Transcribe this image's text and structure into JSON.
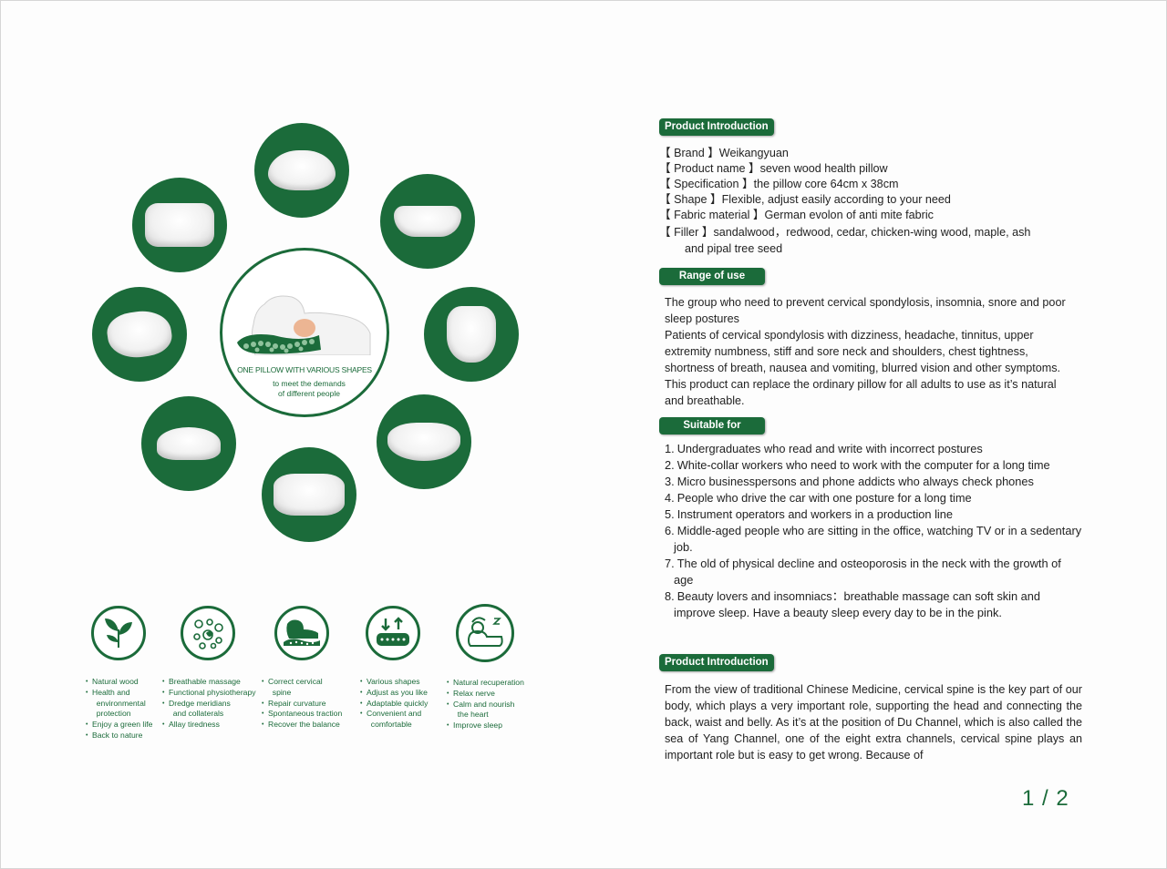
{
  "left": {
    "center_title": "ONE PILLOW WITH VARIOUS SHAPES",
    "center_subtitle": "to meet the demands\nof different people",
    "features": [
      {
        "icon": "leaves-icon",
        "items": [
          "Natural wood",
          "Health and",
          "  environmental",
          "  protection",
          "Enjoy a green life",
          "Back to nature"
        ]
      },
      {
        "icon": "massage-beads-icon",
        "items": [
          "Breathable massage",
          "Functional physiotherapy",
          "Dredge meridians",
          "  and collaterals",
          "Allay tiredness"
        ]
      },
      {
        "icon": "neck-support-icon",
        "items": [
          "Correct cervical",
          "  spine",
          "Repair curvature",
          "Spontaneous traction",
          "Recover the balance"
        ]
      },
      {
        "icon": "adjustable-arrows-icon",
        "items": [
          "Various shapes",
          "Adjust as you like",
          "Adaptable quickly",
          "Convenient and",
          "  comfortable"
        ]
      },
      {
        "icon": "sleeping-person-icon",
        "items": [
          "Natural recuperation",
          "Relax nerve",
          "Calm and nourish",
          "  the heart",
          "Improve sleep"
        ]
      }
    ]
  },
  "right": {
    "sections": {
      "product_intro_label": "Product Introduction",
      "range_label": "Range of use",
      "suitable_label": "Suitable for",
      "product_intro2_label": "Product Introduction"
    },
    "specs": {
      "brand": "【 Brand 】Weikangyuan",
      "name": "【 Product name 】seven wood health pillow",
      "spec": "【 Specification 】the pillow core 64cm x 38cm",
      "shape": "【 Shape 】Flexible, adjust easily according to your need",
      "fabric": "【 Fabric material 】German evolon of anti mite fabric",
      "filler": "【 Filler 】sandalwood，redwood, cedar, chicken-wing wood, maple, ash",
      "filler_cont": "and pipal tree seed"
    },
    "range_text": "The group who need to prevent cervical spondylosis,  insomnia,  snore and poor sleep postures\nPatients of cervical spondylosis with dizziness,  headache,  tinnitus,  upper extremity numbness,  stiff and sore neck and shoulders,  chest tightness, shortness of breath,  nausea and vomiting,  blurred vision and other symptoms. This product can replace the ordinary pillow for all adults to use as it’s natural and breathable.",
    "suitable": [
      {
        "n": "1.",
        "text": "Undergraduates who read and write with incorrect postures"
      },
      {
        "n": "2.",
        "text": "White-collar workers who need to work with the computer for a long time"
      },
      {
        "n": "3.",
        "text": "Micro businesspersons and phone addicts who always check phones"
      },
      {
        "n": "4.",
        "text": "People who drive the car with one posture for a long time"
      },
      {
        "n": "5.",
        "text": "Instrument operators and workers in a production line"
      },
      {
        "n": "6.",
        "text": "Middle-aged people who are sitting in the office,  watching TV or in a sedentary job."
      },
      {
        "n": "7.",
        "text": "The old of physical decline and osteoporosis in the neck with the growth of age"
      },
      {
        "n": "8.",
        "text": "Beauty lovers and insomniacs：breathable massage can soft skin and improve sleep.  Have a beauty sleep every day to be in the pink."
      }
    ],
    "intro_text": "From the view of traditional Chinese Medicine, cervical spine is the key part of our body,  which plays a very important role,  supporting the head and connecting the back,  waist and belly.  As it’s at the position of Du Channel, which is also called the sea of Yang Channel,  one of the eight extra channels, cervical spine plays an important role but is easy to get wrong.  Because of"
  },
  "page_number": "1 / 2",
  "colors": {
    "accent": "#1b6b3a"
  }
}
